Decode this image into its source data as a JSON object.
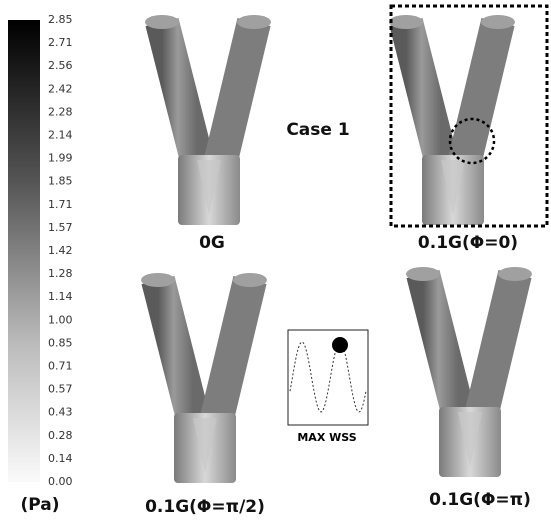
{
  "colorbar": {
    "unit": "(Pa)",
    "labels": [
      "2.85",
      "2.71",
      "2.56",
      "2.42",
      "2.28",
      "2.14",
      "1.99",
      "1.85",
      "1.71",
      "1.57",
      "1.42",
      "1.28",
      "1.14",
      "1.00",
      "0.85",
      "0.71",
      "0.57",
      "0.43",
      "0.28",
      "0.14",
      "0.00"
    ]
  },
  "case_label": "Case 1",
  "panels": [
    {
      "label": "0G"
    },
    {
      "label": "0.1G(Φ=0)"
    },
    {
      "label": "0.1G(Φ=π/2)"
    },
    {
      "label": "0.1G(Φ=π)"
    }
  ],
  "inset": {
    "label": "MAX WSS"
  }
}
